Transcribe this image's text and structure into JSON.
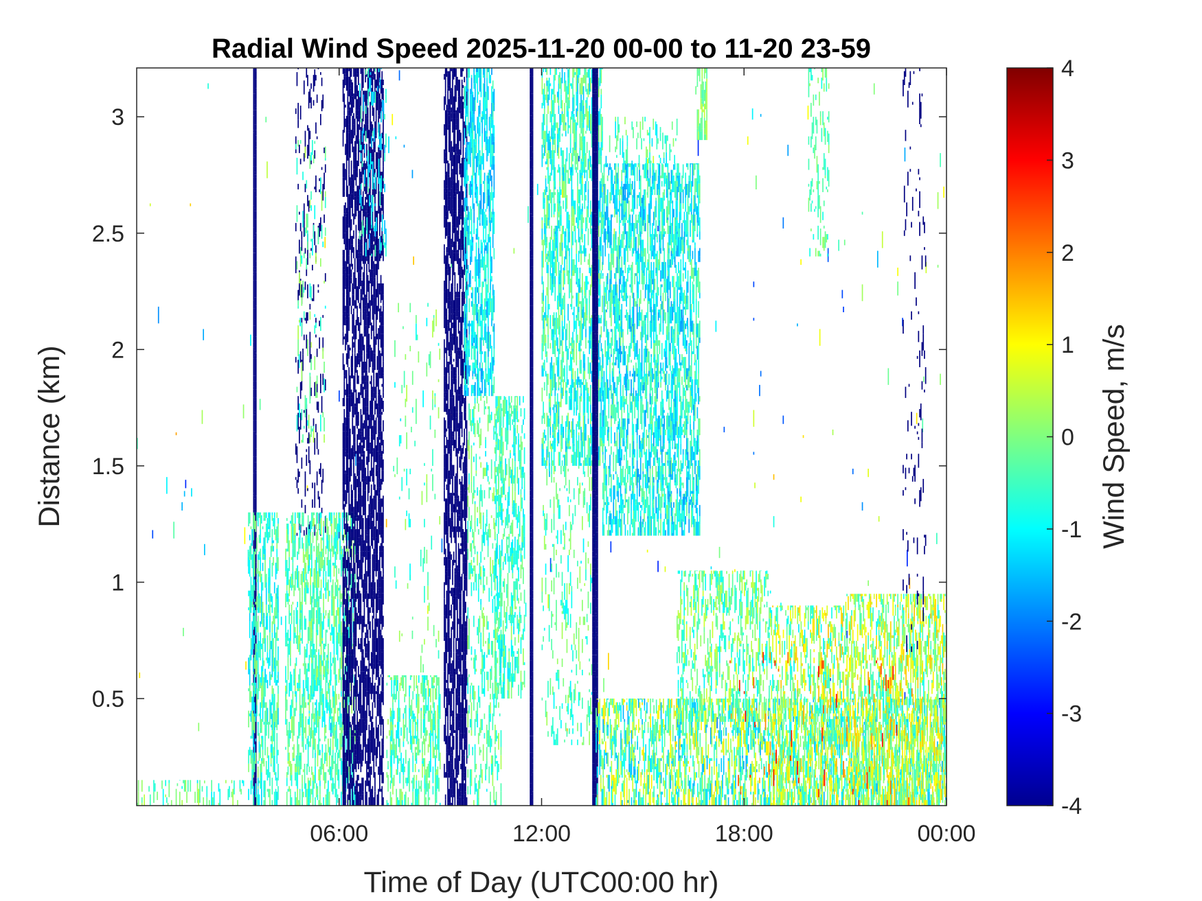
{
  "chart_data": {
    "type": "heatmap",
    "title": "Radial Wind Speed 2025-11-20 00-00 to 11-20 23-59",
    "xlabel": "Time of Day (UTC00:00 hr)",
    "ylabel": "Distance (km)",
    "xlim": [
      0,
      24
    ],
    "ylim": [
      0.04,
      3.21
    ],
    "xticks": [
      {
        "value": 6,
        "label": "06:00"
      },
      {
        "value": 12,
        "label": "12:00"
      },
      {
        "value": 18,
        "label": "18:00"
      },
      {
        "value": 24,
        "label": "00:00"
      }
    ],
    "yticks": [
      {
        "value": 0.5,
        "label": "0.5"
      },
      {
        "value": 1,
        "label": "1"
      },
      {
        "value": 1.5,
        "label": "1.5"
      },
      {
        "value": 2,
        "label": "2"
      },
      {
        "value": 2.5,
        "label": "2.5"
      },
      {
        "value": 3,
        "label": "3"
      }
    ],
    "colorbar": {
      "label": "Wind Speed, m/s",
      "colormap": "jet",
      "clim": [
        -4,
        4
      ],
      "ticks": [
        {
          "value": 4,
          "label": "4"
        },
        {
          "value": 3,
          "label": "3"
        },
        {
          "value": 2,
          "label": "2"
        },
        {
          "value": 1,
          "label": "1"
        },
        {
          "value": 0,
          "label": "0"
        },
        {
          "value": -1,
          "label": "-1"
        },
        {
          "value": -2,
          "label": "-2"
        },
        {
          "value": -3,
          "label": "-3"
        },
        {
          "value": -4,
          "label": "-4"
        }
      ]
    },
    "regions": [
      {
        "t0": 0.0,
        "t1": 3.2,
        "z0": 0.04,
        "z1": 0.15,
        "mean": -0.3,
        "spread": 0.6,
        "density": 0.25
      },
      {
        "t0": 0.0,
        "t1": 24,
        "z0": 0.3,
        "z1": 3.2,
        "mean": -0.5,
        "spread": 1.5,
        "density": 0.004
      },
      {
        "t0": 3.45,
        "t1": 3.55,
        "z0": 0.04,
        "z1": 3.21,
        "mean": -4,
        "spread": 0,
        "density": 1.0
      },
      {
        "t0": 3.3,
        "t1": 4.2,
        "z0": 0.04,
        "z1": 1.3,
        "mean": -0.6,
        "spread": 0.5,
        "density": 0.55
      },
      {
        "t0": 4.7,
        "t1": 5.6,
        "z0": 1.2,
        "z1": 3.21,
        "mean": -4,
        "spread": 0,
        "density": 0.15
      },
      {
        "t0": 4.7,
        "t1": 5.6,
        "z0": 1.6,
        "z1": 2.9,
        "mean": -0.3,
        "spread": 0.5,
        "density": 0.12
      },
      {
        "t0": 4.4,
        "t1": 6.5,
        "z0": 0.04,
        "z1": 1.3,
        "mean": -0.4,
        "spread": 0.5,
        "density": 0.55
      },
      {
        "t0": 6.1,
        "t1": 7.3,
        "z0": 0.04,
        "z1": 3.21,
        "mean": -4,
        "spread": 0,
        "density": 0.7
      },
      {
        "t0": 6.6,
        "t1": 7.4,
        "z0": 2.4,
        "z1": 3.21,
        "mean": -1,
        "spread": 0.5,
        "density": 0.25
      },
      {
        "t0": 7.4,
        "t1": 9.0,
        "z0": 0.04,
        "z1": 0.6,
        "mean": -0.4,
        "spread": 0.5,
        "density": 0.5
      },
      {
        "t0": 7.6,
        "t1": 9.0,
        "z0": 0.6,
        "z1": 2.2,
        "mean": -0.3,
        "spread": 0.5,
        "density": 0.06
      },
      {
        "t0": 9.1,
        "t1": 9.8,
        "z0": 0.04,
        "z1": 3.21,
        "mean": -4,
        "spread": 0,
        "density": 0.75
      },
      {
        "t0": 9.7,
        "t1": 10.6,
        "z0": 1.8,
        "z1": 3.21,
        "mean": -1.1,
        "spread": 0.5,
        "density": 0.6
      },
      {
        "t0": 9.8,
        "t1": 10.8,
        "z0": 0.04,
        "z1": 1.8,
        "mean": -0.4,
        "spread": 0.5,
        "density": 0.3
      },
      {
        "t0": 10.6,
        "t1": 11.5,
        "z0": 0.5,
        "z1": 1.8,
        "mean": -0.5,
        "spread": 0.5,
        "density": 0.5
      },
      {
        "t0": 11.65,
        "t1": 11.75,
        "z0": 0.04,
        "z1": 3.21,
        "mean": -4,
        "spread": 0,
        "density": 1.0
      },
      {
        "t0": 12.0,
        "t1": 13.8,
        "z0": 1.5,
        "z1": 3.21,
        "mean": -0.6,
        "spread": 0.6,
        "density": 0.6
      },
      {
        "t0": 12.0,
        "t1": 13.6,
        "z0": 0.3,
        "z1": 1.5,
        "mean": -0.4,
        "spread": 0.5,
        "density": 0.2
      },
      {
        "t0": 13.5,
        "t1": 13.65,
        "z0": 0.04,
        "z1": 3.21,
        "mean": -4,
        "spread": 0,
        "density": 1.0
      },
      {
        "t0": 13.8,
        "t1": 16.7,
        "z0": 1.2,
        "z1": 2.8,
        "mean": -0.9,
        "spread": 0.6,
        "density": 0.6
      },
      {
        "t0": 14.0,
        "t1": 16.0,
        "z0": 2.8,
        "z1": 3.0,
        "mean": -0.5,
        "spread": 0.5,
        "density": 0.2
      },
      {
        "t0": 16.6,
        "t1": 16.9,
        "z0": 2.9,
        "z1": 3.21,
        "mean": 0.0,
        "spread": 0.4,
        "density": 0.7
      },
      {
        "t0": 13.6,
        "t1": 24.0,
        "z0": 0.04,
        "z1": 0.5,
        "mean": -0.2,
        "spread": 1.0,
        "density": 0.55
      },
      {
        "t0": 16.0,
        "t1": 18.8,
        "z0": 0.4,
        "z1": 1.05,
        "mean": -0.2,
        "spread": 0.6,
        "density": 0.4
      },
      {
        "t0": 18.8,
        "t1": 21.0,
        "z0": 0.04,
        "z1": 0.9,
        "mean": 0.2,
        "spread": 0.9,
        "density": 0.45
      },
      {
        "t0": 21.0,
        "t1": 24.0,
        "z0": 0.04,
        "z1": 0.95,
        "mean": 0.3,
        "spread": 0.8,
        "density": 0.55
      },
      {
        "t0": 17.5,
        "t1": 23.5,
        "z0": 0.04,
        "z1": 0.7,
        "mean": 2.3,
        "spread": 0.6,
        "density": 0.03
      },
      {
        "t0": 22.7,
        "t1": 23.4,
        "z0": 0.7,
        "z1": 3.21,
        "mean": -4,
        "spread": 0,
        "density": 0.08
      },
      {
        "t0": 19.9,
        "t1": 20.5,
        "z0": 2.4,
        "z1": 3.21,
        "mean": -0.3,
        "spread": 0.4,
        "density": 0.25
      }
    ]
  }
}
